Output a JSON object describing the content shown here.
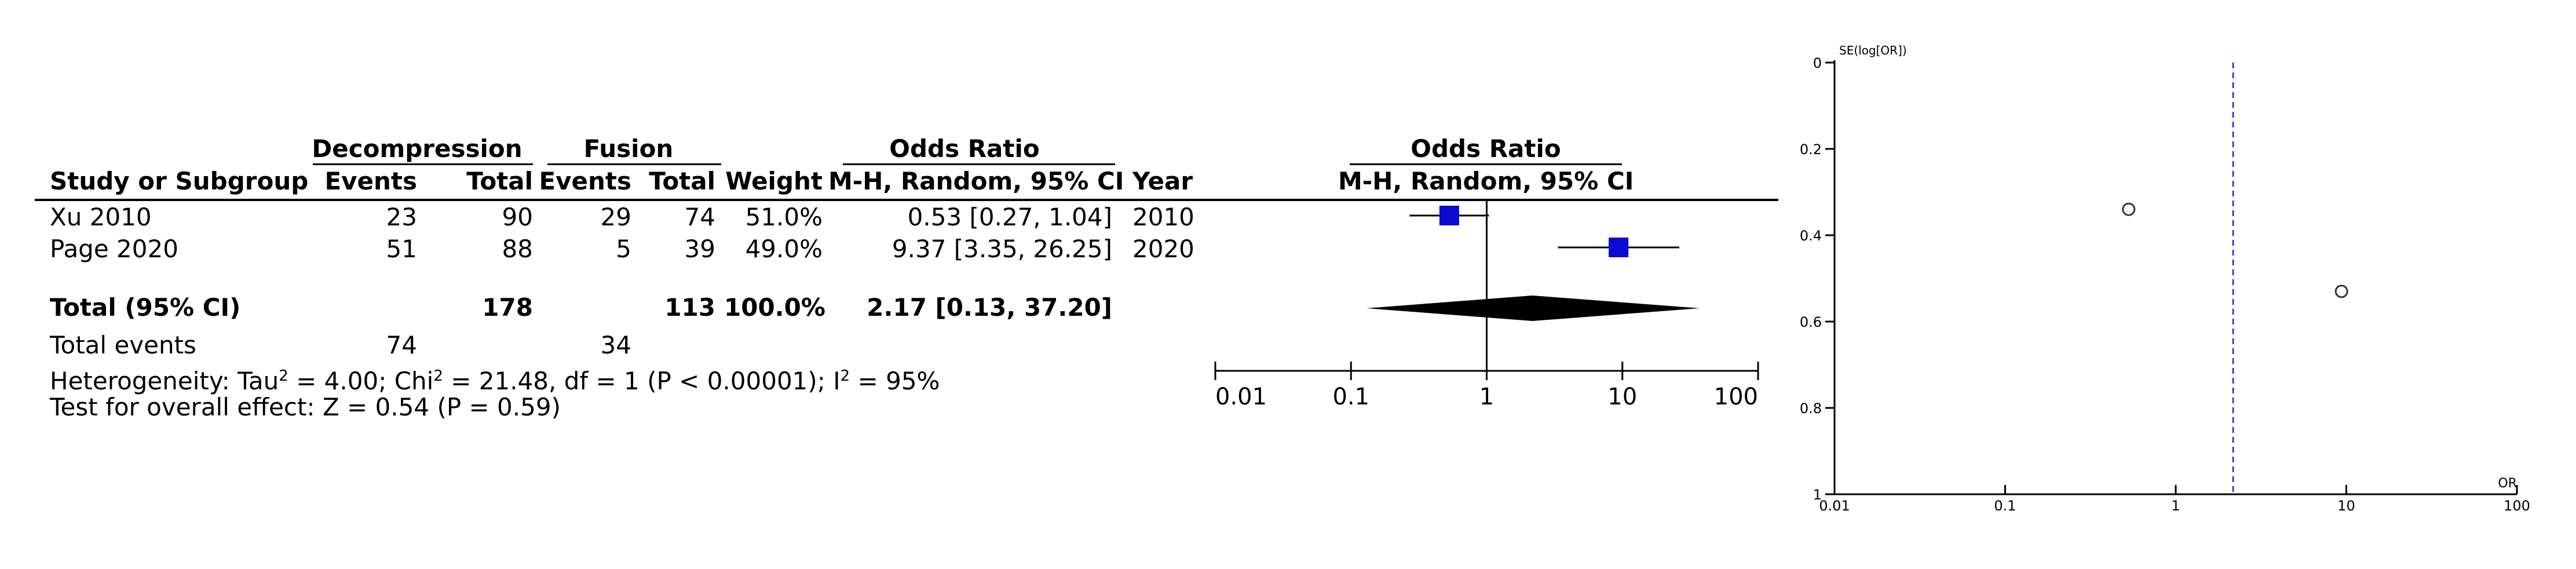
{
  "forest": {
    "group_headers": {
      "experimental": "Decompression",
      "control": "Fusion",
      "or_left": "Odds Ratio",
      "or_right": "Odds Ratio"
    },
    "columns": {
      "study": "Study or Subgroup",
      "events1": "Events",
      "total1": "Total",
      "events2": "Events",
      "total2": "Total",
      "weight": "Weight",
      "method": "M-H, Random, 95% CI",
      "year": "Year",
      "method_right": "M-H, Random, 95% CI"
    },
    "studies": [
      {
        "name": "Xu 2010",
        "events1": "23",
        "total1": "90",
        "events2": "29",
        "total2": "74",
        "weight": "51.0%",
        "ci_text": "0.53 [0.27, 1.04]",
        "year": "2010"
      },
      {
        "name": "Page 2020",
        "events1": "51",
        "total1": "88",
        "events2": "5",
        "total2": "39",
        "weight": "49.0%",
        "ci_text": "9.37 [3.35, 26.25]",
        "year": "2020"
      }
    ],
    "total": {
      "label": "Total (95% CI)",
      "total1": "178",
      "total2": "113",
      "weight": "100.0%",
      "ci_text": "2.17 [0.13, 37.20]"
    },
    "total_events": {
      "label": "Total events",
      "events1": "74",
      "events2": "34"
    },
    "heterogeneity": {
      "prefix": "Heterogeneity: Tau",
      "tau_sup": "2",
      "mid": " = 4.00; Chi",
      "chi_sup": "2",
      "mid2": " = 21.48, df = 1 (P < 0.00001); I",
      "i_sup": "2",
      "suffix": " = 95%"
    },
    "overall_effect": "Test for overall effect: Z = 0.54 (P = 0.59)",
    "axis_ticks": [
      "0.01",
      "0.1",
      "1",
      "10",
      "100"
    ]
  },
  "chart_data": [
    {
      "type": "scatter",
      "subtype": "forest",
      "x_scale": "log",
      "xlim": [
        0.01,
        100
      ],
      "xticks": [
        0.01,
        0.1,
        1,
        10,
        100
      ],
      "reference_line": 1,
      "studies": [
        {
          "name": "Xu 2010",
          "or": 0.53,
          "ci": [
            0.27,
            1.04
          ],
          "weight": 51.0
        },
        {
          "name": "Page 2020",
          "or": 9.37,
          "ci": [
            3.35,
            26.25
          ],
          "weight": 49.0
        }
      ],
      "pooled": {
        "or": 2.17,
        "ci": [
          0.13,
          37.2
        ]
      },
      "marker_color": "#0a0ad2"
    },
    {
      "type": "scatter",
      "subtype": "funnel",
      "xlabel": "OR",
      "ylabel": "SE(log[OR])",
      "x_scale": "log",
      "xlim": [
        0.01,
        100
      ],
      "ylim": [
        0,
        1
      ],
      "y_inverted": true,
      "xticks": [
        0.01,
        0.1,
        1,
        10,
        100
      ],
      "yticks": [
        0,
        0.2,
        0.4,
        0.6,
        0.8,
        1
      ],
      "xtick_labels": [
        "0.01",
        "0.1",
        "1",
        "10",
        "100"
      ],
      "ytick_labels": [
        "0",
        "0.2",
        "0.4",
        "0.6",
        "0.8",
        "1"
      ],
      "pooled_line": 2.17,
      "points": [
        {
          "x": 0.53,
          "y": 0.34
        },
        {
          "x": 9.37,
          "y": 0.53
        }
      ],
      "line_color": "#3b3bd6"
    }
  ]
}
